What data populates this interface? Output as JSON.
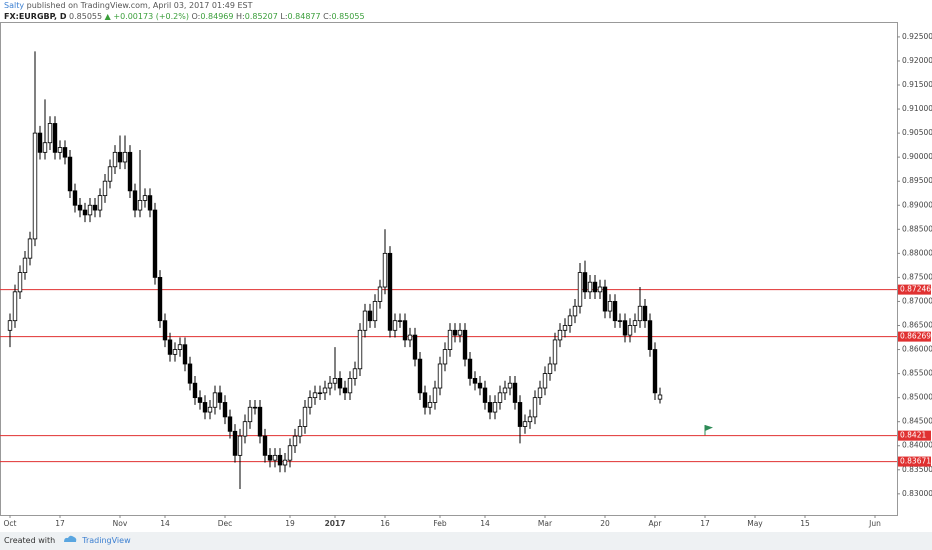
{
  "header": {
    "author": "Salty",
    "published": "published on TradingView.com, April 03, 2017 01:49 EST",
    "symbol": "FX:EURGBP, D",
    "price": "0.85055",
    "change": "▲ +0.00173 (+0.2%)",
    "ohlc": [
      {
        "label": "O:",
        "value": "0.84969"
      },
      {
        "label": "H:",
        "value": "0.85207"
      },
      {
        "label": "L:",
        "value": "0.84877"
      },
      {
        "label": "C:",
        "value": "0.85055"
      }
    ]
  },
  "footer": {
    "created": "Created with",
    "brand": "TradingView"
  },
  "chart_data": {
    "type": "candlestick",
    "up_color": "#ffffff",
    "down_color": "#000000",
    "border_color": "#000000",
    "open": [
      0.864,
      0.866,
      0.872,
      0.876,
      0.879,
      0.883,
      0.905,
      0.901,
      0.903,
      0.907,
      0.901,
      0.902,
      0.9,
      0.893,
      0.89,
      0.889,
      0.888,
      0.89,
      0.889,
      0.892,
      0.895,
      0.898,
      0.901,
      0.899,
      0.901,
      0.893,
      0.889,
      0.891,
      0.892,
      0.889,
      0.875,
      0.866,
      0.862,
      0.859,
      0.86,
      0.861,
      0.857,
      0.853,
      0.85,
      0.849,
      0.847,
      0.848,
      0.851,
      0.849,
      0.846,
      0.843,
      0.838,
      0.842,
      0.845,
      0.848,
      0.848,
      0.842,
      0.838,
      0.837,
      0.838,
      0.836,
      0.837,
      0.84,
      0.842,
      0.844,
      0.848,
      0.85,
      0.851,
      0.851,
      0.852,
      0.853,
      0.854,
      0.852,
      0.851,
      0.854,
      0.856,
      0.864,
      0.868,
      0.866,
      0.87,
      0.873,
      0.88,
      0.864,
      0.866,
      0.866,
      0.862,
      0.863,
      0.858,
      0.851,
      0.848,
      0.849,
      0.852,
      0.857,
      0.86,
      0.864,
      0.863,
      0.864,
      0.858,
      0.854,
      0.853,
      0.852,
      0.849,
      0.847,
      0.849,
      0.851,
      0.852,
      0.853,
      0.849,
      0.844,
      0.845,
      0.846,
      0.85,
      0.852,
      0.855,
      0.857,
      0.862,
      0.864,
      0.865,
      0.867,
      0.869,
      0.876,
      0.872,
      0.874,
      0.872,
      0.873,
      0.868,
      0.87,
      0.866,
      0.866,
      0.863,
      0.865,
      0.866,
      0.869,
      0.866,
      0.86,
      0.84969
    ],
    "high": [
      0.8675,
      0.8735,
      0.8775,
      0.8805,
      0.8845,
      0.922,
      0.9065,
      0.912,
      0.9085,
      0.9085,
      0.9035,
      0.9035,
      0.9015,
      0.8945,
      0.8915,
      0.8905,
      0.8915,
      0.8915,
      0.8935,
      0.8965,
      0.8995,
      0.9025,
      0.9045,
      0.9045,
      0.9025,
      0.8945,
      0.9015,
      0.8935,
      0.8935,
      0.8905,
      0.8765,
      0.8675,
      0.8635,
      0.8615,
      0.8625,
      0.8625,
      0.8585,
      0.8545,
      0.8515,
      0.8505,
      0.8495,
      0.8525,
      0.8525,
      0.8505,
      0.8475,
      0.8445,
      0.8435,
      0.8465,
      0.8495,
      0.8495,
      0.8495,
      0.8435,
      0.8395,
      0.8395,
      0.8395,
      0.8385,
      0.8415,
      0.8435,
      0.8455,
      0.8495,
      0.8515,
      0.8525,
      0.8525,
      0.8535,
      0.8545,
      0.8605,
      0.8555,
      0.8535,
      0.8555,
      0.8575,
      0.8655,
      0.8695,
      0.8695,
      0.8715,
      0.8745,
      0.885,
      0.8815,
      0.8675,
      0.8675,
      0.8675,
      0.8645,
      0.8645,
      0.8595,
      0.8525,
      0.8505,
      0.8535,
      0.8585,
      0.8615,
      0.8655,
      0.8655,
      0.8655,
      0.8655,
      0.8595,
      0.8555,
      0.8545,
      0.8535,
      0.8505,
      0.8505,
      0.8525,
      0.8535,
      0.8545,
      0.8545,
      0.8505,
      0.8465,
      0.8475,
      0.8515,
      0.8535,
      0.8565,
      0.8585,
      0.8635,
      0.8655,
      0.8665,
      0.8685,
      0.8705,
      0.878,
      0.8785,
      0.8755,
      0.8755,
      0.8745,
      0.8745,
      0.8715,
      0.8715,
      0.8675,
      0.8675,
      0.8665,
      0.8675,
      0.873,
      0.8705,
      0.8675,
      0.8615,
      0.85207
    ],
    "low": [
      0.8605,
      0.8645,
      0.8705,
      0.8745,
      0.8775,
      0.8815,
      0.8995,
      0.8995,
      0.9015,
      0.8995,
      0.8995,
      0.8985,
      0.8915,
      0.8885,
      0.8875,
      0.8865,
      0.8865,
      0.8875,
      0.8875,
      0.8905,
      0.8935,
      0.8965,
      0.8975,
      0.8975,
      0.8915,
      0.8875,
      0.8875,
      0.8895,
      0.8875,
      0.8735,
      0.8645,
      0.8605,
      0.8575,
      0.8575,
      0.8585,
      0.8555,
      0.8515,
      0.8485,
      0.8475,
      0.8455,
      0.8455,
      0.8465,
      0.8475,
      0.8445,
      0.8415,
      0.8365,
      0.831,
      0.8405,
      0.8435,
      0.8465,
      0.8405,
      0.8365,
      0.8355,
      0.8355,
      0.8345,
      0.8345,
      0.8355,
      0.8385,
      0.8405,
      0.8425,
      0.8465,
      0.8485,
      0.8495,
      0.8495,
      0.8505,
      0.8515,
      0.8505,
      0.8495,
      0.8495,
      0.8525,
      0.8545,
      0.8625,
      0.8645,
      0.8645,
      0.8685,
      0.8715,
      0.8625,
      0.8625,
      0.8645,
      0.8605,
      0.8605,
      0.8565,
      0.8495,
      0.8465,
      0.8465,
      0.8475,
      0.8505,
      0.8555,
      0.8585,
      0.8615,
      0.8615,
      0.8565,
      0.8525,
      0.8515,
      0.8505,
      0.8475,
      0.8455,
      0.8455,
      0.8475,
      0.8495,
      0.8505,
      0.8475,
      0.8405,
      0.8425,
      0.8435,
      0.8445,
      0.8485,
      0.8505,
      0.8535,
      0.8555,
      0.8605,
      0.8625,
      0.8635,
      0.8655,
      0.8675,
      0.8705,
      0.8705,
      0.8705,
      0.8705,
      0.8665,
      0.8665,
      0.8645,
      0.8645,
      0.8615,
      0.8615,
      0.8635,
      0.8645,
      0.8645,
      0.8585,
      0.8495,
      0.84877
    ],
    "close": [
      0.866,
      0.872,
      0.876,
      0.879,
      0.883,
      0.905,
      0.901,
      0.903,
      0.907,
      0.901,
      0.902,
      0.9,
      0.893,
      0.89,
      0.889,
      0.888,
      0.89,
      0.889,
      0.892,
      0.895,
      0.898,
      0.901,
      0.899,
      0.901,
      0.893,
      0.889,
      0.891,
      0.892,
      0.889,
      0.875,
      0.866,
      0.862,
      0.859,
      0.86,
      0.861,
      0.857,
      0.853,
      0.85,
      0.849,
      0.847,
      0.848,
      0.851,
      0.849,
      0.846,
      0.843,
      0.838,
      0.842,
      0.845,
      0.848,
      0.848,
      0.842,
      0.838,
      0.837,
      0.838,
      0.836,
      0.837,
      0.84,
      0.842,
      0.844,
      0.848,
      0.85,
      0.851,
      0.851,
      0.852,
      0.853,
      0.854,
      0.852,
      0.851,
      0.854,
      0.856,
      0.864,
      0.868,
      0.866,
      0.87,
      0.873,
      0.88,
      0.864,
      0.866,
      0.866,
      0.862,
      0.863,
      0.858,
      0.851,
      0.848,
      0.849,
      0.852,
      0.857,
      0.86,
      0.864,
      0.863,
      0.864,
      0.858,
      0.854,
      0.853,
      0.852,
      0.849,
      0.847,
      0.849,
      0.851,
      0.852,
      0.853,
      0.849,
      0.844,
      0.845,
      0.846,
      0.85,
      0.852,
      0.855,
      0.857,
      0.862,
      0.864,
      0.865,
      0.867,
      0.869,
      0.876,
      0.872,
      0.874,
      0.872,
      0.873,
      0.868,
      0.87,
      0.866,
      0.866,
      0.863,
      0.865,
      0.866,
      0.869,
      0.866,
      0.86,
      0.851,
      0.85055
    ],
    "ylim": [
      0.8256,
      0.9281
    ],
    "yticks": [
      {
        "value": 0.925,
        "label": "0.92500"
      },
      {
        "value": 0.92,
        "label": "0.92000"
      },
      {
        "value": 0.915,
        "label": "0.91500"
      },
      {
        "value": 0.91,
        "label": "0.91000"
      },
      {
        "value": 0.905,
        "label": "0.90500"
      },
      {
        "value": 0.9,
        "label": "0.90000"
      },
      {
        "value": 0.895,
        "label": "0.89500"
      },
      {
        "value": 0.89,
        "label": "0.89000"
      },
      {
        "value": 0.885,
        "label": "0.88500"
      },
      {
        "value": 0.88,
        "label": "0.88000"
      },
      {
        "value": 0.875,
        "label": "0.87500"
      },
      {
        "value": 0.87,
        "label": "0.87000"
      },
      {
        "value": 0.865,
        "label": "0.86500"
      },
      {
        "value": 0.86,
        "label": "0.86000"
      },
      {
        "value": 0.855,
        "label": "0.85500"
      },
      {
        "value": 0.85,
        "label": "0.85000"
      },
      {
        "value": 0.845,
        "label": "0.84500"
      },
      {
        "value": 0.84,
        "label": "0.84000"
      },
      {
        "value": 0.835,
        "label": "0.83500"
      },
      {
        "value": 0.83,
        "label": "0.83000"
      }
    ],
    "xlim": [
      -2,
      177.4
    ],
    "xticks": [
      {
        "value": 0,
        "label": "Oct"
      },
      {
        "value": 10,
        "label": "17"
      },
      {
        "value": 22,
        "label": "Nov"
      },
      {
        "value": 31,
        "label": "14"
      },
      {
        "value": 43,
        "label": "Dec"
      },
      {
        "value": 56,
        "label": "19"
      },
      {
        "value": 65,
        "label": "2017"
      },
      {
        "value": 75,
        "label": "16"
      },
      {
        "value": 86,
        "label": "Feb"
      },
      {
        "value": 95,
        "label": "14"
      },
      {
        "value": 107,
        "label": "Mar"
      },
      {
        "value": 119,
        "label": "20"
      },
      {
        "value": 129,
        "label": "Apr"
      },
      {
        "value": 139,
        "label": "17"
      },
      {
        "value": 149,
        "label": "May"
      },
      {
        "value": 159,
        "label": "15"
      },
      {
        "value": 173,
        "label": "Jun"
      }
    ],
    "hlines": [
      0.87246,
      0.86269,
      0.8421,
      0.83671
    ],
    "hline_color": "#e03131",
    "grid": false
  }
}
